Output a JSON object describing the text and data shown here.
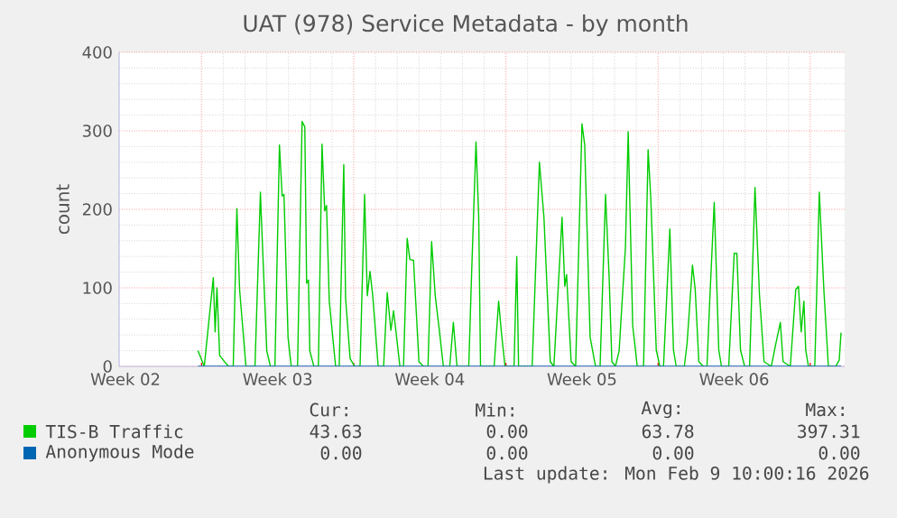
{
  "chart_data": {
    "type": "line",
    "title": "UAT (978) Service Metadata - by month",
    "ylabel": "count",
    "xlim": [
      "2026-01-07T05:00",
      "2026-02-09T14:00"
    ],
    "ylim": [
      0,
      400
    ],
    "xticks": [
      {
        "value": "2026-01-07T12:00",
        "label": "Week 02"
      },
      {
        "value": "2026-01-11T00:00",
        "label": null
      },
      {
        "value": "2026-01-14T12:00",
        "label": "Week 03"
      },
      {
        "value": "2026-01-18T00:00",
        "label": null
      },
      {
        "value": "2026-01-21T12:00",
        "label": "Week 04"
      },
      {
        "value": "2026-01-25T00:00",
        "label": null
      },
      {
        "value": "2026-01-28T12:00",
        "label": "Week 05"
      },
      {
        "value": "2026-02-01T00:00",
        "label": null
      },
      {
        "value": "2026-02-04T12:00",
        "label": "Week 06"
      },
      {
        "value": "2026-02-08T00:00",
        "label": null
      }
    ],
    "yticks": [
      0,
      100,
      200,
      300,
      400
    ],
    "grid": true,
    "legend": "bottom",
    "series": [
      {
        "name": "TIS-B Traffic",
        "color": "#00cc00",
        "x": [
          "2026-01-10T20:00",
          "2026-01-11T03:00",
          "2026-01-11T13:00",
          "2026-01-11T15:00",
          "2026-01-11T17:00",
          "2026-01-11T20:00",
          "2026-01-12T02:00",
          "2026-01-12T06:00",
          "2026-01-12T11:00",
          "2026-01-12T15:00",
          "2026-01-12T18:00",
          "2026-01-13T01:00",
          "2026-01-13T11:00",
          "2026-01-13T17:00",
          "2026-01-13T18:00",
          "2026-01-14T00:00",
          "2026-01-14T04:00",
          "2026-01-14T09:00",
          "2026-01-14T14:00",
          "2026-01-14T17:00",
          "2026-01-14T19:00",
          "2026-01-14T23:30",
          "2026-01-15T03:00",
          "2026-01-15T10:00",
          "2026-01-15T15:00",
          "2026-01-15T18:00",
          "2026-01-15T20:00",
          "2026-01-15T22:00",
          "2026-01-15T23:30",
          "2026-01-16T04:00",
          "2026-01-16T09:00",
          "2026-01-16T13:00",
          "2026-01-16T16:00",
          "2026-01-16T18:00",
          "2026-01-16T21:00",
          "2026-01-17T04:00",
          "2026-01-17T08:00",
          "2026-01-17T13:00",
          "2026-01-17T15:00",
          "2026-01-17T20:00",
          "2026-01-18T01:00",
          "2026-01-18T07:00",
          "2026-01-18T12:00",
          "2026-01-18T15:00",
          "2026-01-18T18:00",
          "2026-01-18T21:00",
          "2026-01-19T03:00",
          "2026-01-19T09:00",
          "2026-01-19T13:00",
          "2026-01-19T17:00",
          "2026-01-19T20:00",
          "2026-01-20T03:00",
          "2026-01-20T07:00",
          "2026-01-20T11:00",
          "2026-01-20T14:00",
          "2026-01-20T18:00",
          "2026-01-21T00:00",
          "2026-01-21T05:00",
          "2026-01-21T10:00",
          "2026-01-21T14:00",
          "2026-01-21T18:00",
          "2026-01-21T23:00",
          "2026-01-22T03:00",
          "2026-01-22T10:00",
          "2026-01-22T14:00",
          "2026-01-22T18:00",
          "2026-01-23T07:00",
          "2026-01-23T10:00",
          "2026-01-23T15:00",
          "2026-01-23T18:00",
          "2026-01-23T20:00",
          "2026-01-24T11:00",
          "2026-01-24T16:00",
          "2026-01-24T19:00",
          "2026-01-24T23:00",
          "2026-01-25T09:00",
          "2026-01-25T12:00",
          "2026-01-25T14:00",
          "2026-01-26T05:00",
          "2026-01-26T13:00",
          "2026-01-26T18:00",
          "2026-01-27T01:00",
          "2026-01-27T05:00",
          "2026-01-27T14:00",
          "2026-01-27T17:00",
          "2026-01-27T19:00",
          "2026-01-28T00:00",
          "2026-01-28T05:00",
          "2026-01-28T12:00",
          "2026-01-28T15:00",
          "2026-01-28T21:00",
          "2026-01-29T03:00",
          "2026-01-29T08:00",
          "2026-01-29T14:00",
          "2026-01-29T18:00",
          "2026-01-29T21:00",
          "2026-01-30T01:00",
          "2026-01-30T05:00",
          "2026-01-30T12:00",
          "2026-01-30T15:00",
          "2026-01-30T20:00",
          "2026-01-31T01:00",
          "2026-01-31T08:00",
          "2026-01-31T13:00",
          "2026-01-31T16:00",
          "2026-01-31T22:00",
          "2026-02-01T02:00",
          "2026-02-01T06:00",
          "2026-02-01T09:00",
          "2026-02-01T13:00",
          "2026-02-01T17:00",
          "2026-02-01T20:00",
          "2026-02-02T05:00",
          "2026-02-02T08:00",
          "2026-02-02T14:00",
          "2026-02-02T17:00",
          "2026-02-02T21:00",
          "2026-02-03T02:00",
          "2026-02-03T06:00",
          "2026-02-03T09:00",
          "2026-02-03T14:00",
          "2026-02-03T19:00",
          "2026-02-03T22:00",
          "2026-02-04T06:00",
          "2026-02-04T12:00",
          "2026-02-04T15:00",
          "2026-02-04T19:00",
          "2026-02-04T23:30",
          "2026-02-05T05:00",
          "2026-02-05T11:00",
          "2026-02-05T16:00",
          "2026-02-05T21:00",
          "2026-02-06T05:00",
          "2026-02-06T10:00",
          "2026-02-06T15:00",
          "2026-02-06T18:00",
          "2026-02-07T02:00",
          "2026-02-07T08:00",
          "2026-02-07T11:00",
          "2026-02-07T14:00",
          "2026-02-07T17:00",
          "2026-02-07T19:00",
          "2026-02-07T22:00",
          "2026-02-08T05:00",
          "2026-02-08T10:00",
          "2026-02-08T15:00",
          "2026-02-08T20:00",
          "2026-02-09T04:00",
          "2026-02-09T08:00",
          "2026-02-09T10:00"
        ],
        "values": [
          20,
          0,
          113,
          44,
          100,
          14,
          5,
          0,
          0,
          201,
          98,
          0,
          0,
          222,
          190,
          20,
          0,
          0,
          282,
          217,
          219,
          37,
          0,
          0,
          312,
          305,
          106,
          110,
          20,
          0,
          0,
          283,
          198,
          205,
          83,
          0,
          0,
          257,
          87,
          10,
          0,
          0,
          219,
          90,
          121,
          90,
          0,
          0,
          94,
          46,
          71,
          0,
          0,
          163,
          136,
          135,
          6,
          0,
          0,
          159,
          90,
          41,
          0,
          0,
          56,
          0,
          0,
          113,
          286,
          190,
          0,
          0,
          83,
          44,
          0,
          0,
          140,
          0,
          0,
          260,
          190,
          6,
          0,
          190,
          102,
          117,
          6,
          0,
          309,
          282,
          37,
          0,
          0,
          219,
          113,
          6,
          0,
          20,
          152,
          299,
          52,
          0,
          0,
          276,
          213,
          21,
          0,
          0,
          75,
          175,
          21,
          0,
          0,
          29,
          129,
          98,
          6,
          0,
          0,
          83,
          209,
          21,
          0,
          0,
          144,
          144,
          21,
          0,
          0,
          228,
          90,
          6,
          0,
          29,
          56,
          6,
          0,
          98,
          102,
          44,
          83,
          21,
          0,
          0,
          222,
          98,
          0,
          0,
          8,
          43
        ]
      },
      {
        "name": "Anonymous Mode",
        "color": "#0066b3",
        "x": [
          "2026-01-10T20:00",
          "2026-02-09T10:00"
        ],
        "values": [
          0,
          0
        ]
      }
    ],
    "annotations": [
      "Cur:",
      "Min:",
      "Avg:",
      "Max:",
      "43.63",
      "0.00",
      "63.78",
      "397.31",
      "0.00",
      "0.00",
      "0.00",
      "0.00",
      "Last update: Mon Feb  9 10:00:16 2026"
    ]
  }
}
